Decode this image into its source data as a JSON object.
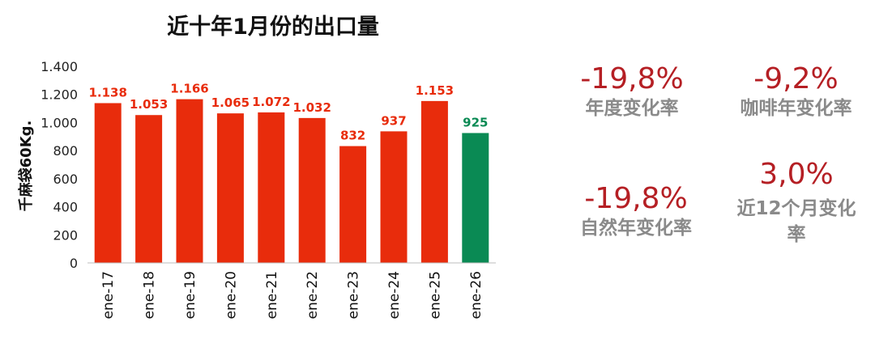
{
  "chart_data": {
    "type": "bar",
    "title": "近十年1月份的出口量",
    "ylabel": "千麻袋60Kg.",
    "xlabel": "",
    "categories": [
      "ene-17",
      "ene-18",
      "ene-19",
      "ene-20",
      "ene-21",
      "ene-22",
      "ene-23",
      "ene-24",
      "ene-25",
      "ene-26"
    ],
    "values": [
      1138,
      1053,
      1166,
      1065,
      1072,
      1032,
      832,
      937,
      1153,
      925
    ],
    "data_labels": [
      "1.138",
      "1.053",
      "1.166",
      "1.065",
      "1.072",
      "1.032",
      "832",
      "937",
      "1.153",
      "925"
    ],
    "ylim": [
      0,
      1400
    ],
    "yticks": [
      0,
      200,
      400,
      600,
      800,
      1000,
      1200,
      1400
    ],
    "ytick_labels": [
      "0",
      "200",
      "400",
      "600",
      "800",
      "1.000",
      "1.200",
      "1.400"
    ],
    "grid": false,
    "colors": {
      "default": "#e82c0c",
      "highlight": "#0a8a54"
    },
    "highlight_index": 9
  },
  "stats": {
    "annual_change": {
      "value": "-19,8%",
      "label": "年度变化率"
    },
    "coffee_year_change": {
      "value": "-9,2%",
      "label": "咖啡年变化率"
    },
    "natural_year_change": {
      "value": "-19,8%",
      "label": "自然年变化率"
    },
    "last12_change": {
      "value": "3,0%",
      "label_line1": "近12个月变化",
      "label_line2": "率"
    }
  }
}
